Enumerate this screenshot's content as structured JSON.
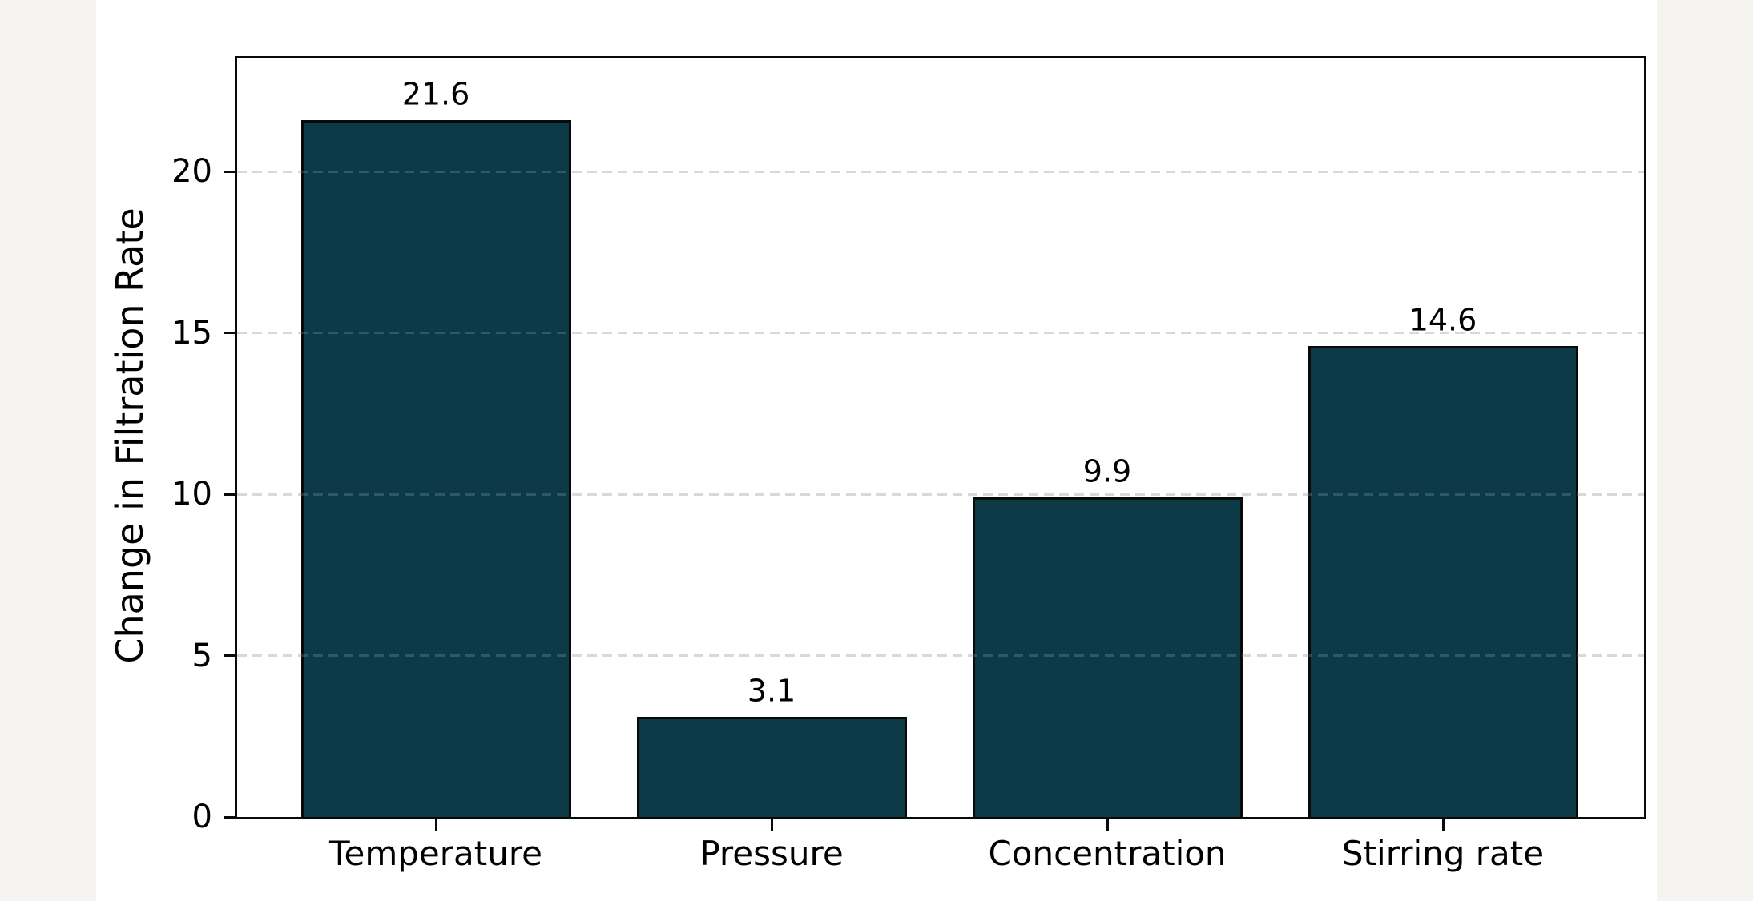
{
  "chart_data": {
    "type": "bar",
    "categories": [
      "Temperature",
      "Pressure",
      "Concentration",
      "Stirring rate"
    ],
    "values": [
      21.6,
      3.1,
      9.9,
      14.6
    ],
    "value_labels": [
      "21.6",
      "3.1",
      "9.9",
      "14.6"
    ],
    "title": "",
    "xlabel": "",
    "ylabel": "Change in Filtration Rate",
    "ylim": [
      0,
      23.5
    ],
    "yticks": [
      0,
      5,
      10,
      15,
      20
    ],
    "ytick_labels": [
      "0",
      "5",
      "10",
      "15",
      "20"
    ],
    "legend": "none",
    "grid": "horizontal-dashed",
    "colors": {
      "bar_fill": "#0d3a47",
      "bar_edge": "#0a0a0a",
      "spine": "#0a0a0a",
      "grid_line": "#d7d7d7",
      "grid_line_over_bar": "rgba(213,226,231,0.18)",
      "text": "#000000",
      "plot_background": "#ffffff",
      "figure_background": "#ffffff",
      "page_background": "#f5f4f1"
    }
  }
}
